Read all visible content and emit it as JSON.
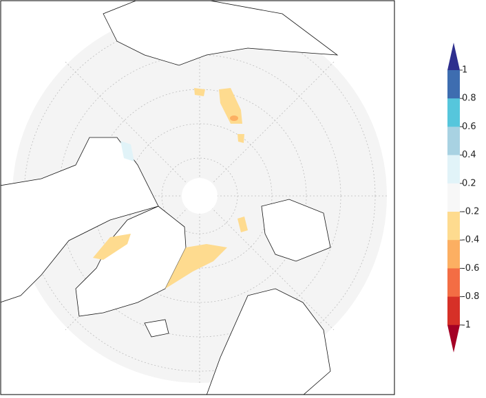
{
  "colorbar": {
    "ticks": [
      1,
      0.8,
      0.6,
      0.4,
      0.2,
      -0.2,
      -0.4,
      -0.6,
      -0.8,
      -1
    ],
    "colors": [
      "#3e6db0",
      "#56c6dc",
      "#a8d2e2",
      "#e1f3f8",
      "#f7f7f7",
      "#fedb8f",
      "#fcaf62",
      "#f36d44",
      "#d63027"
    ],
    "over_color": "#2e2f8e",
    "under_color": "#a40025"
  }
}
